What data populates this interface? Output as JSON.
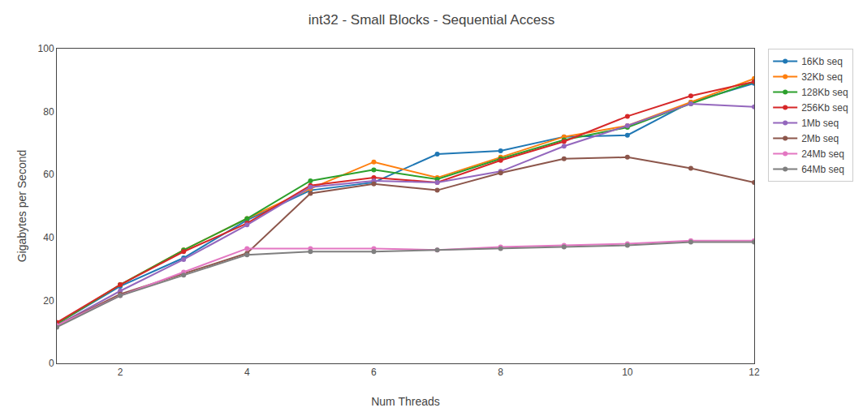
{
  "chart_data": {
    "type": "line",
    "title": "int32 - Small Blocks - Sequential Access",
    "xlabel": "Num Threads",
    "ylabel": "Gigabytes per Second",
    "x": [
      1,
      2,
      3,
      4,
      5,
      6,
      7,
      8,
      9,
      10,
      11,
      12
    ],
    "xlim": [
      1,
      12
    ],
    "ylim": [
      0,
      100
    ],
    "xticks": [
      2,
      4,
      6,
      8,
      10,
      12
    ],
    "yticks": [
      0,
      20,
      40,
      60,
      80,
      100
    ],
    "grid": false,
    "legend": "right",
    "marker": "circle",
    "line_style": "solid",
    "series": [
      {
        "name": "16Kb seq",
        "color": "#1f77b4",
        "values": [
          12.5,
          24.5,
          33.5,
          45.5,
          55.0,
          57.5,
          66.5,
          67.5,
          72.0,
          72.5,
          83.0,
          89.0
        ]
      },
      {
        "name": "32Kb seq",
        "color": "#ff7f0e",
        "values": [
          12.5,
          25.0,
          36.0,
          46.0,
          55.5,
          64.0,
          59.0,
          65.5,
          72.0,
          75.5,
          83.0,
          90.5
        ]
      },
      {
        "name": "128Kb seq",
        "color": "#2ca02c",
        "values": [
          12.5,
          25.0,
          36.0,
          46.0,
          58.0,
          61.5,
          58.5,
          65.0,
          71.0,
          75.0,
          82.5,
          89.5
        ]
      },
      {
        "name": "256Kb seq",
        "color": "#d62728",
        "values": [
          13.0,
          25.0,
          35.5,
          44.5,
          56.5,
          59.0,
          57.5,
          64.5,
          70.5,
          78.5,
          85.0,
          89.5
        ]
      },
      {
        "name": "1Mb seq",
        "color": "#9467bd",
        "values": [
          12.0,
          23.0,
          33.0,
          44.0,
          56.0,
          58.0,
          57.5,
          61.0,
          69.0,
          75.5,
          82.5,
          81.5
        ]
      },
      {
        "name": "2Mb seq",
        "color": "#8c564b",
        "values": [
          12.0,
          22.0,
          28.5,
          35.0,
          54.0,
          57.0,
          55.0,
          60.5,
          65.0,
          65.5,
          62.0,
          57.5
        ]
      },
      {
        "name": "24Mb seq",
        "color": "#e377c2",
        "values": [
          12.0,
          21.5,
          29.0,
          36.5,
          36.5,
          36.5,
          36.0,
          37.0,
          37.5,
          38.0,
          39.0,
          39.0
        ]
      },
      {
        "name": "64Mb seq",
        "color": "#7f7f7f",
        "values": [
          11.5,
          21.5,
          28.0,
          34.5,
          35.5,
          35.5,
          36.0,
          36.5,
          37.0,
          37.5,
          38.5,
          38.5
        ]
      }
    ]
  }
}
